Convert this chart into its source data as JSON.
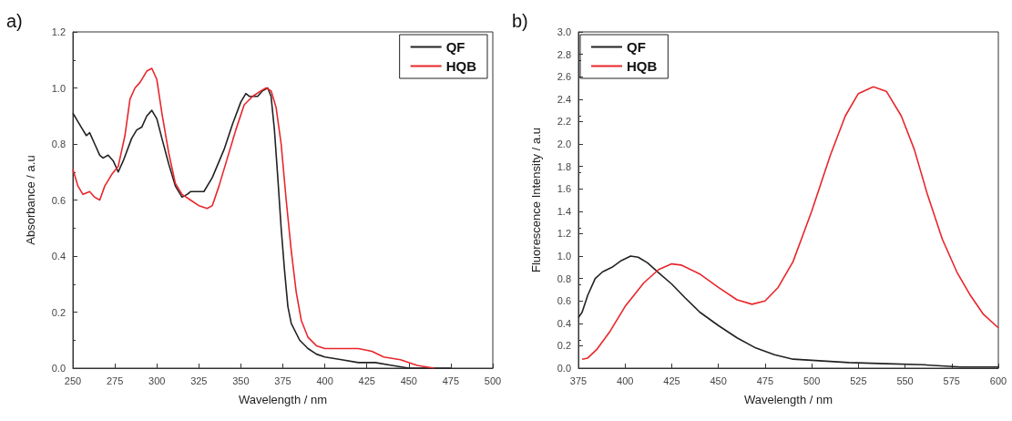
{
  "chart_data": [
    {
      "type": "line",
      "title": "a)",
      "xlabel": "Wavelength / nm",
      "ylabel": "Absorbance / a.u",
      "legend": "top right",
      "grid": false,
      "marker": "none",
      "line_style": "solid",
      "xlim": [
        250,
        500
      ],
      "xticks": [
        250,
        275,
        300,
        325,
        350,
        375,
        400,
        425,
        450,
        475,
        500
      ],
      "ylim": [
        0,
        1.2
      ],
      "yticks": [
        {
          "value": 0,
          "label": "0.0"
        },
        0.2,
        0.4,
        0.6,
        0.8,
        {
          "value": 1,
          "label": "1.0"
        },
        1.2
      ],
      "series": [
        {
          "name": "QF",
          "color": "#222222",
          "x": [
            250,
            255,
            258,
            260,
            263,
            266,
            268,
            271,
            274,
            277,
            280,
            285,
            288,
            291,
            294,
            297,
            300,
            303,
            307,
            311,
            315,
            318,
            320,
            325,
            328,
            333,
            340,
            345,
            350,
            353,
            355,
            360,
            363,
            366,
            368,
            370,
            372,
            374,
            376,
            378,
            380,
            385,
            390,
            395,
            400,
            410,
            420,
            430,
            440,
            450,
            460,
            470,
            475
          ],
          "values": [
            0.91,
            0.86,
            0.83,
            0.84,
            0.8,
            0.76,
            0.75,
            0.76,
            0.74,
            0.7,
            0.74,
            0.82,
            0.85,
            0.86,
            0.9,
            0.92,
            0.89,
            0.82,
            0.73,
            0.65,
            0.61,
            0.62,
            0.63,
            0.63,
            0.63,
            0.68,
            0.78,
            0.87,
            0.95,
            0.98,
            0.97,
            0.97,
            0.99,
            1.0,
            0.97,
            0.85,
            0.68,
            0.5,
            0.35,
            0.22,
            0.16,
            0.1,
            0.07,
            0.05,
            0.04,
            0.03,
            0.02,
            0.02,
            0.01,
            0.0,
            0.0,
            0.0,
            0.0
          ]
        },
        {
          "name": "HQB",
          "color": "#e8262b",
          "x": [
            250,
            253,
            256,
            260,
            263,
            266,
            269,
            273,
            277,
            281,
            284,
            287,
            290,
            294,
            297,
            300,
            303,
            307,
            311,
            315,
            320,
            325,
            330,
            333,
            337,
            342,
            347,
            352,
            357,
            362,
            365,
            368,
            371,
            374,
            377,
            380,
            383,
            386,
            390,
            395,
            400,
            410,
            420,
            428,
            435,
            445,
            455,
            465
          ],
          "values": [
            0.71,
            0.65,
            0.62,
            0.63,
            0.61,
            0.6,
            0.65,
            0.69,
            0.72,
            0.83,
            0.96,
            1.0,
            1.02,
            1.06,
            1.07,
            1.03,
            0.91,
            0.77,
            0.66,
            0.62,
            0.6,
            0.58,
            0.57,
            0.58,
            0.65,
            0.75,
            0.85,
            0.94,
            0.97,
            0.99,
            1.0,
            0.99,
            0.93,
            0.8,
            0.6,
            0.42,
            0.27,
            0.17,
            0.11,
            0.08,
            0.07,
            0.07,
            0.07,
            0.06,
            0.04,
            0.03,
            0.01,
            0.0
          ]
        }
      ]
    },
    {
      "type": "line",
      "title": "b)",
      "xlabel": "Wavelength / nm",
      "ylabel": "Fluorescence Intensity / a.u",
      "legend": "top left",
      "grid": false,
      "marker": "none",
      "line_style": "solid",
      "xlim": [
        375,
        600
      ],
      "xticks": [
        375,
        400,
        425,
        450,
        475,
        500,
        525,
        550,
        575,
        600
      ],
      "ylim": [
        0,
        3
      ],
      "yticks": [
        {
          "value": 0,
          "label": "0.0"
        },
        0.2,
        0.4,
        0.6,
        0.8,
        {
          "value": 1,
          "label": "1.0"
        },
        1.2,
        1.4,
        1.6,
        1.8,
        {
          "value": 2,
          "label": "2.0"
        },
        2.2,
        2.4,
        2.6,
        2.8,
        {
          "value": 3,
          "label": "3.0"
        }
      ],
      "series": [
        {
          "name": "QF",
          "color": "#222222",
          "x": [
            375,
            377,
            380,
            384,
            388,
            393,
            398,
            403,
            407,
            412,
            418,
            425,
            432,
            440,
            450,
            460,
            470,
            480,
            490,
            500,
            520,
            540,
            560,
            580,
            600
          ],
          "values": [
            0.45,
            0.5,
            0.65,
            0.8,
            0.86,
            0.9,
            0.96,
            1.0,
            0.99,
            0.94,
            0.85,
            0.75,
            0.63,
            0.5,
            0.38,
            0.27,
            0.18,
            0.12,
            0.08,
            0.07,
            0.05,
            0.04,
            0.03,
            0.01,
            0.01
          ]
        },
        {
          "name": "HQB",
          "color": "#e8262b",
          "x": [
            377,
            380,
            385,
            392,
            400,
            410,
            418,
            425,
            430,
            440,
            450,
            460,
            468,
            475,
            482,
            490,
            500,
            510,
            518,
            525,
            533,
            540,
            548,
            555,
            562,
            570,
            578,
            585,
            592,
            600
          ],
          "values": [
            0.08,
            0.09,
            0.17,
            0.33,
            0.55,
            0.76,
            0.88,
            0.93,
            0.92,
            0.84,
            0.72,
            0.61,
            0.57,
            0.6,
            0.72,
            0.95,
            1.4,
            1.9,
            2.25,
            2.45,
            2.51,
            2.47,
            2.25,
            1.95,
            1.55,
            1.15,
            0.85,
            0.65,
            0.48,
            0.36
          ]
        }
      ]
    }
  ]
}
